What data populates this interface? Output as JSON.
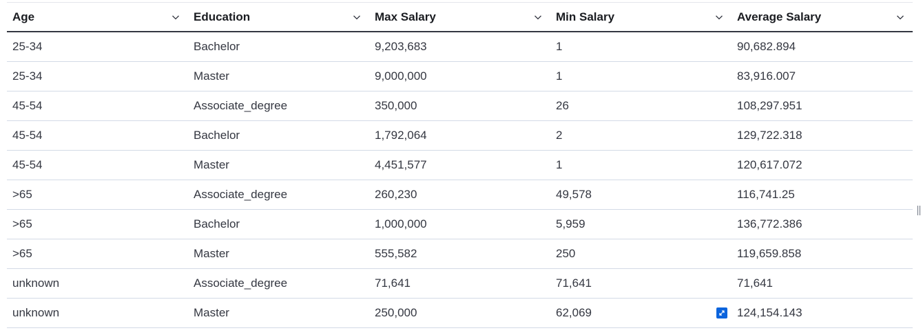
{
  "table": {
    "columns": [
      {
        "label": "Age"
      },
      {
        "label": "Education"
      },
      {
        "label": "Max Salary"
      },
      {
        "label": "Min Salary"
      },
      {
        "label": "Average Salary"
      }
    ],
    "rows": [
      [
        "25-34",
        "Bachelor",
        "9,203,683",
        "1",
        "90,682.894"
      ],
      [
        "25-34",
        "Master",
        "9,000,000",
        "1",
        "83,916.007"
      ],
      [
        "45-54",
        "Associate_degree",
        "350,000",
        "26",
        "108,297.951"
      ],
      [
        "45-54",
        "Bachelor",
        "1,792,064",
        "2",
        "129,722.318"
      ],
      [
        "45-54",
        "Master",
        "4,451,577",
        "1",
        "120,617.072"
      ],
      [
        ">65",
        "Associate_degree",
        "260,230",
        "49,578",
        "116,741.25"
      ],
      [
        ">65",
        "Bachelor",
        "1,000,000",
        "5,959",
        "136,772.386"
      ],
      [
        ">65",
        "Master",
        "555,582",
        "250",
        "119,659.858"
      ],
      [
        "unknown",
        "Associate_degree",
        "71,641",
        "71,641",
        "71,641"
      ],
      [
        "unknown",
        "Master",
        "250,000",
        "62,069",
        "124,154.143"
      ]
    ],
    "header_icon": "chevron-down-icon",
    "cell_action_icon": "expand-icon",
    "accent_color": "#0b64dd"
  }
}
